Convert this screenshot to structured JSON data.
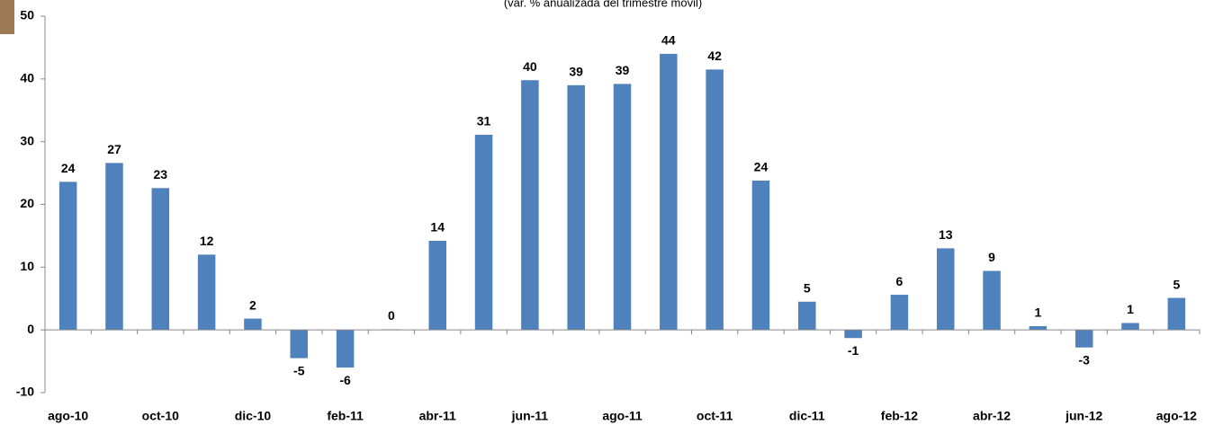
{
  "chart_data": {
    "type": "bar",
    "subtitle": "(var. % anualizada del trimestre móvil)",
    "categories": [
      "ago-10",
      null,
      "oct-10",
      null,
      "dic-10",
      null,
      "feb-11",
      null,
      "abr-11",
      null,
      "jun-11",
      null,
      "ago-11",
      null,
      "oct-11",
      null,
      "dic-11",
      null,
      "feb-12",
      null,
      "abr-12",
      null,
      "jun-12",
      null,
      "ago-12"
    ],
    "values": [
      23.6,
      26.6,
      22.6,
      12,
      1.8,
      -4.5,
      -6,
      0.1,
      14.2,
      31.1,
      39.8,
      39,
      39.2,
      44,
      41.5,
      23.8,
      4.5,
      -1.3,
      5.6,
      13,
      9.4,
      0.6,
      -2.8,
      1.1,
      5.1
    ],
    "value_labels": [
      "24",
      "27",
      "23",
      "12",
      "2",
      "-5",
      "-6",
      "0",
      "14",
      "31",
      "40",
      "39",
      "39",
      "44",
      "42",
      "24",
      "5",
      "-1",
      "6",
      "13",
      "9",
      "1",
      "-3",
      "1",
      "5"
    ],
    "color": "#4f81bd",
    "ylim": [
      -10,
      50
    ],
    "yticks": [
      -10,
      0,
      10,
      20,
      30,
      40,
      50
    ],
    "grid": false
  }
}
